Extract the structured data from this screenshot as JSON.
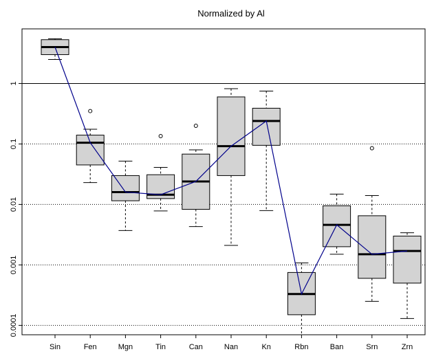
{
  "chart_data": {
    "type": "box",
    "title": "Normalized by Al",
    "xlabel": "",
    "ylabel": "",
    "yscale": "log",
    "ylim": [
      7e-05,
      8
    ],
    "y_ticks": [
      {
        "value": 0.0001,
        "label": "0.0001"
      },
      {
        "value": 0.001,
        "label": "0.001"
      },
      {
        "value": 0.01,
        "label": "0.01"
      },
      {
        "value": 0.1,
        "label": "0.1"
      },
      {
        "value": 1,
        "label": "1"
      }
    ],
    "reference_lines": [
      {
        "value": 1,
        "style": "solid"
      },
      {
        "value": 0.1,
        "style": "dotted"
      },
      {
        "value": 0.01,
        "style": "dotted"
      },
      {
        "value": 0.001,
        "style": "dotted"
      },
      {
        "value": 0.0001,
        "style": "dotted"
      }
    ],
    "categories": [
      "Sin",
      "Fen",
      "Mgn",
      "Tin",
      "Can",
      "Nan",
      "Kn",
      "Rbn",
      "Ban",
      "Srn",
      "Zrn"
    ],
    "boxes": [
      {
        "category": "Sin",
        "whisker_low": 2.5,
        "q1": 3.0,
        "median": 4.0,
        "q3": 5.3,
        "whisker_high": 5.5,
        "outliers": []
      },
      {
        "category": "Fen",
        "whisker_low": 0.023,
        "q1": 0.045,
        "median": 0.105,
        "q3": 0.14,
        "whisker_high": 0.175,
        "outliers": [
          0.35
        ]
      },
      {
        "category": "Mgn",
        "whisker_low": 0.0037,
        "q1": 0.0115,
        "median": 0.016,
        "q3": 0.03,
        "whisker_high": 0.052,
        "outliers": []
      },
      {
        "category": "Tin",
        "whisker_low": 0.0078,
        "q1": 0.0125,
        "median": 0.0145,
        "q3": 0.031,
        "whisker_high": 0.041,
        "outliers": [
          0.135
        ]
      },
      {
        "category": "Can",
        "whisker_low": 0.0043,
        "q1": 0.0083,
        "median": 0.024,
        "q3": 0.068,
        "whisker_high": 0.08,
        "outliers": [
          0.2
        ]
      },
      {
        "category": "Nan",
        "whisker_low": 0.0021,
        "q1": 0.03,
        "median": 0.092,
        "q3": 0.6,
        "whisker_high": 0.82,
        "outliers": []
      },
      {
        "category": "Kn",
        "whisker_low": 0.0079,
        "q1": 0.095,
        "median": 0.24,
        "q3": 0.39,
        "whisker_high": 0.75,
        "outliers": []
      },
      {
        "category": "Rbn",
        "whisker_low": 7e-05,
        "q1": 0.00015,
        "median": 0.00033,
        "q3": 0.00075,
        "whisker_high": 0.00108,
        "outliers": []
      },
      {
        "category": "Ban",
        "whisker_low": 0.0015,
        "q1": 0.002,
        "median": 0.0046,
        "q3": 0.0095,
        "whisker_high": 0.0148,
        "outliers": []
      },
      {
        "category": "Srn",
        "whisker_low": 0.00025,
        "q1": 0.0006,
        "median": 0.0015,
        "q3": 0.0065,
        "whisker_high": 0.014,
        "outliers": [
          0.085
        ]
      },
      {
        "category": "Zrn",
        "whisker_low": 0.00013,
        "q1": 0.0005,
        "median": 0.0017,
        "q3": 0.003,
        "whisker_high": 0.0034,
        "outliers": []
      }
    ],
    "median_line": true,
    "colors": {
      "box_fill": "#d3d3d3",
      "median_line": "#00008b",
      "axis": "#000000"
    },
    "grid": false
  }
}
